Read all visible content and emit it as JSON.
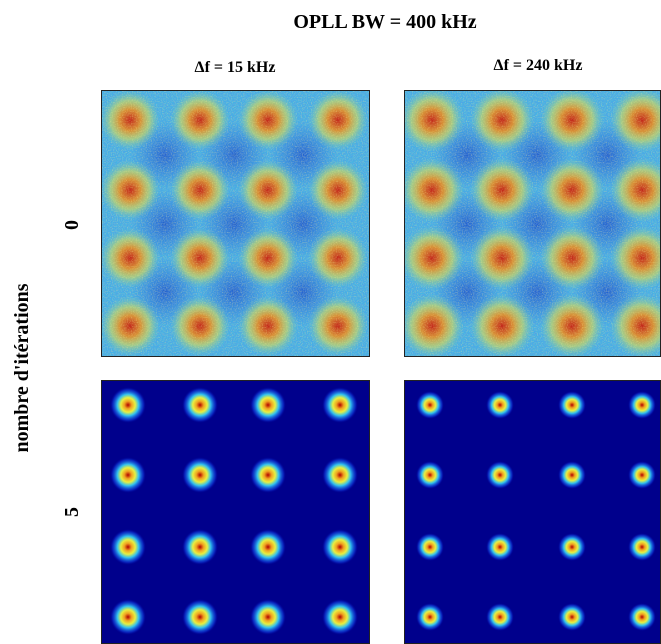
{
  "header": {
    "title": "OPLL BW = 400 kHz"
  },
  "columns": [
    {
      "label": "Δf = 15  kHz"
    },
    {
      "label": "Δf = 240  kHz"
    }
  ],
  "rows": [
    {
      "label": "0"
    },
    {
      "label": "5"
    }
  ],
  "y_label": "nombre d'itérations"
}
